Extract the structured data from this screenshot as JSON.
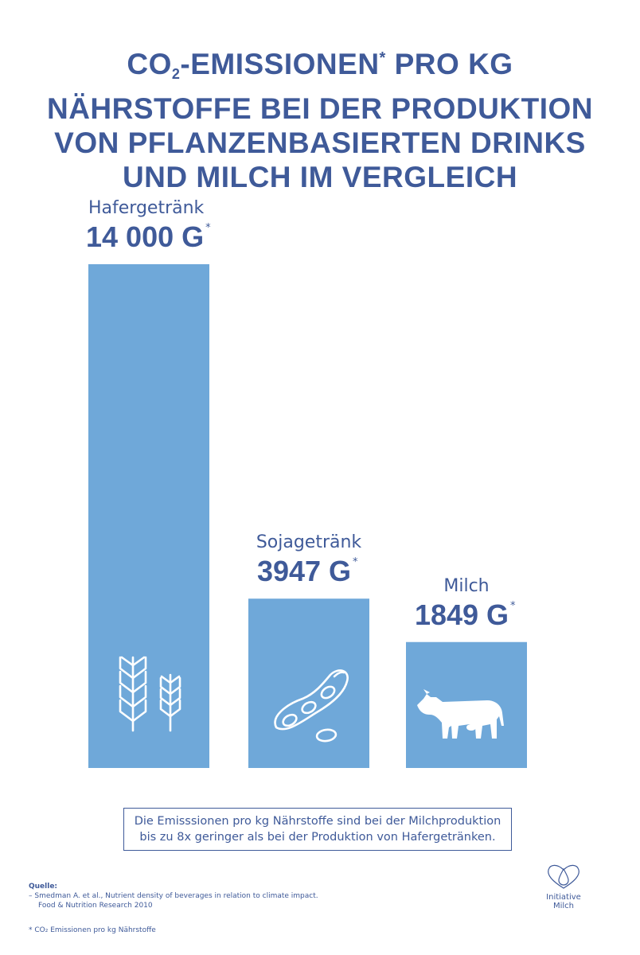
{
  "title": {
    "line1_pre": "CO",
    "line1_sub": "2",
    "line1_mid": "-EMISSIONEN",
    "line1_sup": "*",
    "line1_post": " PRO KG",
    "line2": "NÄHRSTOFFE BEI DER PRODUKTION",
    "line3": "VON PFLANZENBASIERTEN DRINKS",
    "line4": "UND MILCH IM VERGLEICH"
  },
  "chart_data": {
    "type": "bar",
    "categories": [
      "Hafergetränk",
      "Sojagetränk",
      "Milch"
    ],
    "values": [
      14000,
      3947,
      1849
    ],
    "value_labels": [
      "14 000 G",
      "3947 G",
      "1849 G"
    ],
    "value_marker": "*",
    "icons": [
      "wheat-icon",
      "soybean-icon",
      "cow-icon"
    ],
    "bar_color": "#6fa8d9",
    "text_color": "#3f5a99",
    "grid": false,
    "axes": false
  },
  "note": {
    "line1": "Die Emisssionen pro kg Nährstoffe sind bei der Milchproduktion",
    "line2": "bis zu 8x geringer als bei der Produktion von Hafergetränken."
  },
  "source": {
    "label": "Quelle:",
    "entry_line1": "–  Smedman A. et al., Nutrient density of beverages in relation to climate impact.",
    "entry_line2": "Food & Nutrition Research 2010"
  },
  "footnote": "* CO₂ Emissionen pro kg Nährstoffe",
  "logo": {
    "line1": "Initiative",
    "line2": "Milch"
  }
}
